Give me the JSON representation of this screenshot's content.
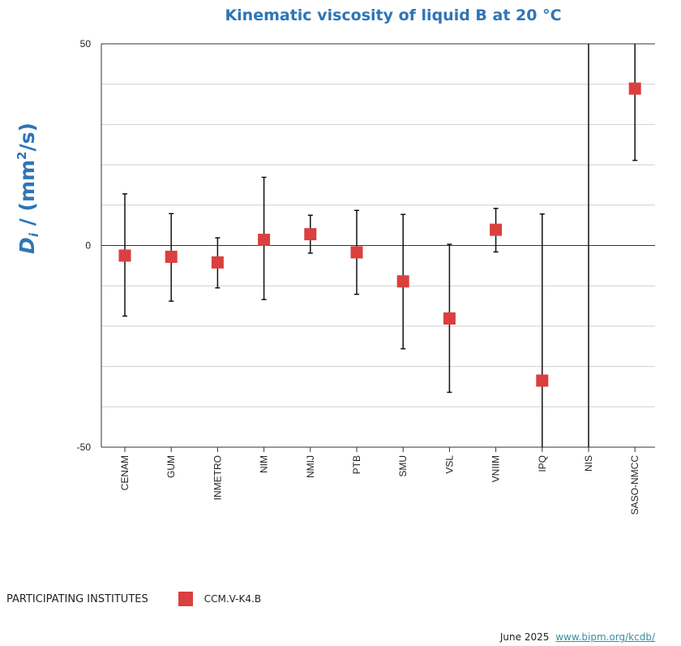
{
  "chart_data": {
    "type": "scatter",
    "title": "Kinematic viscosity of liquid B at 20 °C",
    "ylabel": {
      "symbol": "D",
      "subscript": "i",
      "unit_prefix": " / (mm",
      "unit_sup": "2",
      "unit_suffix": "/s)"
    },
    "ylim": [
      -50,
      50
    ],
    "ytick_labels": [
      {
        "value": 50,
        "label": "50"
      },
      {
        "value": 0,
        "label": "0"
      },
      {
        "value": -50,
        "label": "-50"
      }
    ],
    "grid_step": 10,
    "categories": [
      "CENAM",
      "GUM",
      "INMETRO",
      "NIM",
      "NMIJ",
      "PTB",
      "SMU",
      "VSL",
      "VNIIM",
      "IPQ",
      "NIS",
      "SASO-NMCC"
    ],
    "series": [
      {
        "name": "CCM.V-K4.B",
        "color": "#d9403f",
        "values": [
          -2.5,
          -2.8,
          -4.2,
          1.4,
          2.8,
          -1.7,
          -8.9,
          -18.1,
          3.9,
          -33.5,
          null,
          38.9
        ],
        "err_low": [
          -17.5,
          -13.8,
          -10.5,
          -13.4,
          -1.9,
          -12.1,
          -25.6,
          -36.4,
          -1.6,
          -50,
          -50,
          21.1
        ],
        "err_high": [
          12.8,
          7.9,
          1.9,
          16.9,
          7.5,
          8.7,
          7.7,
          0.3,
          9.2,
          7.8,
          50,
          50
        ]
      }
    ]
  },
  "legend": {
    "heading": "PARTICIPATING INSTITUTES",
    "entry": "CCM.V-K4.B",
    "marker_color": "#d9403f"
  },
  "footer": {
    "date": "June 2025",
    "link": "www.bipm.org/kcdb/"
  }
}
